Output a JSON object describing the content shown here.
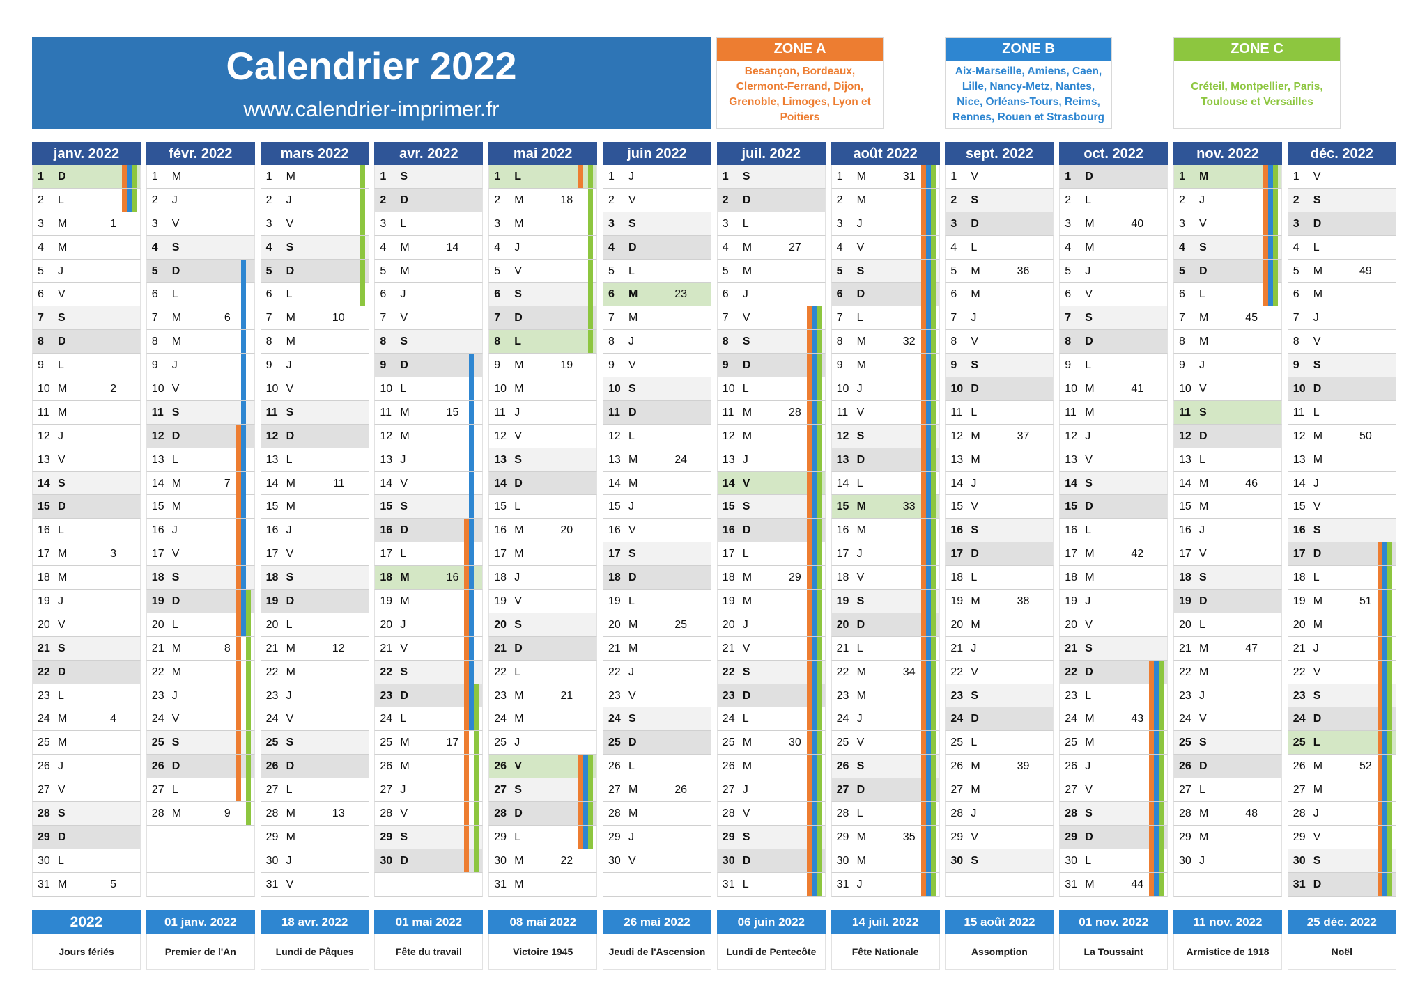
{
  "header": {
    "title": "Calendrier 2022",
    "url": "www.calendrier-imprimer.fr"
  },
  "zones": [
    {
      "label": "ZONE A",
      "cities": "Besançon, Bordeaux, Clermont-Ferrand, Dijon, Grenoble, Limoges, Lyon et Poitiers",
      "color": "#ed7d31"
    },
    {
      "label": "ZONE B",
      "cities": "Aix-Marseille, Amiens, Caen, Lille, Nancy-Metz, Nantes, Nice, Orléans-Tours, Reims, Rennes, Rouen et Strasbourg",
      "color": "#2e86d1"
    },
    {
      "label": "ZONE C",
      "cities": "Créteil, Montpellier, Paris, Toulouse et Versailles",
      "color": "#8dc63f"
    }
  ],
  "months": [
    {
      "label": "janv. 2022",
      "days": 31,
      "start": 6,
      "weeks": {
        "3": "1",
        "10": "2",
        "17": "3",
        "24": "4",
        "31": "5"
      },
      "holidays": [
        1
      ],
      "vacA": [
        1,
        2
      ],
      "vacB": [
        1,
        2
      ],
      "vacC": [
        1,
        2
      ]
    },
    {
      "label": "févr. 2022",
      "days": 28,
      "start": 2,
      "weeks": {
        "7": "6",
        "14": "7",
        "21": "8",
        "28": "9"
      },
      "holidays": [],
      "vacA": [
        12,
        13,
        14,
        15,
        16,
        17,
        18,
        19,
        20,
        21,
        22,
        23,
        24,
        25,
        26,
        27
      ],
      "vacB": [
        5,
        6,
        7,
        8,
        9,
        10,
        11,
        12,
        13,
        14,
        15,
        16,
        17,
        18,
        19,
        20
      ],
      "vacC": [
        19,
        20,
        21,
        22,
        23,
        24,
        25,
        26,
        27,
        28
      ]
    },
    {
      "label": "mars 2022",
      "days": 31,
      "start": 2,
      "weeks": {
        "7": "10",
        "14": "11",
        "21": "12",
        "28": "13"
      },
      "holidays": [],
      "vacA": [],
      "vacB": [],
      "vacC": [
        1,
        2,
        3,
        4,
        5,
        6
      ]
    },
    {
      "label": "avr. 2022",
      "days": 30,
      "start": 5,
      "weeks": {
        "4": "14",
        "11": "15",
        "18": "16",
        "25": "17"
      },
      "holidays": [
        18
      ],
      "vacA": [
        16,
        17,
        18,
        19,
        20,
        21,
        22,
        23,
        24,
        25,
        26,
        27,
        28,
        29,
        30
      ],
      "vacB": [
        9,
        10,
        11,
        12,
        13,
        14,
        15,
        16,
        17,
        18,
        19,
        20,
        21,
        22,
        23,
        24
      ],
      "vacC": [
        23,
        24,
        25,
        26,
        27,
        28,
        29,
        30
      ]
    },
    {
      "label": "mai 2022",
      "days": 31,
      "start": 0,
      "weeks": {
        "2": "18",
        "9": "19",
        "16": "20",
        "23": "21",
        "30": "22"
      },
      "holidays": [
        1,
        8,
        26
      ],
      "vacA": [
        1,
        26,
        27,
        28,
        29
      ],
      "vacB": [
        26,
        27,
        28,
        29
      ],
      "vacC": [
        1,
        2,
        3,
        4,
        5,
        6,
        7,
        8,
        26,
        27,
        28,
        29
      ]
    },
    {
      "label": "juin 2022",
      "days": 30,
      "start": 3,
      "weeks": {
        "6": "23",
        "13": "24",
        "20": "25",
        "27": "26"
      },
      "holidays": [
        6
      ],
      "vacA": [],
      "vacB": [],
      "vacC": []
    },
    {
      "label": "juil. 2022",
      "days": 31,
      "start": 5,
      "weeks": {
        "4": "27",
        "11": "28",
        "18": "29",
        "25": "30"
      },
      "holidays": [
        14
      ],
      "vacA": [
        7,
        8,
        9,
        10,
        11,
        12,
        13,
        14,
        15,
        16,
        17,
        18,
        19,
        20,
        21,
        22,
        23,
        24,
        25,
        26,
        27,
        28,
        29,
        30,
        31
      ],
      "vacB": [
        7,
        8,
        9,
        10,
        11,
        12,
        13,
        14,
        15,
        16,
        17,
        18,
        19,
        20,
        21,
        22,
        23,
        24,
        25,
        26,
        27,
        28,
        29,
        30,
        31
      ],
      "vacC": [
        7,
        8,
        9,
        10,
        11,
        12,
        13,
        14,
        15,
        16,
        17,
        18,
        19,
        20,
        21,
        22,
        23,
        24,
        25,
        26,
        27,
        28,
        29,
        30,
        31
      ]
    },
    {
      "label": "août 2022",
      "days": 31,
      "start": 1,
      "weeks": {
        "1": "31",
        "8": "32",
        "15": "33",
        "22": "34",
        "29": "35"
      },
      "holidays": [
        15
      ],
      "vacA": [
        1,
        2,
        3,
        4,
        5,
        6,
        7,
        8,
        9,
        10,
        11,
        12,
        13,
        14,
        15,
        16,
        17,
        18,
        19,
        20,
        21,
        22,
        23,
        24,
        25,
        26,
        27,
        28,
        29,
        30,
        31
      ],
      "vacB": [
        1,
        2,
        3,
        4,
        5,
        6,
        7,
        8,
        9,
        10,
        11,
        12,
        13,
        14,
        15,
        16,
        17,
        18,
        19,
        20,
        21,
        22,
        23,
        24,
        25,
        26,
        27,
        28,
        29,
        30,
        31
      ],
      "vacC": [
        1,
        2,
        3,
        4,
        5,
        6,
        7,
        8,
        9,
        10,
        11,
        12,
        13,
        14,
        15,
        16,
        17,
        18,
        19,
        20,
        21,
        22,
        23,
        24,
        25,
        26,
        27,
        28,
        29,
        30,
        31
      ]
    },
    {
      "label": "sept. 2022",
      "days": 30,
      "start": 4,
      "weeks": {
        "5": "36",
        "12": "37",
        "19": "38",
        "26": "39"
      },
      "holidays": [],
      "vacA": [],
      "vacB": [],
      "vacC": []
    },
    {
      "label": "oct. 2022",
      "days": 31,
      "start": 6,
      "weeks": {
        "3": "40",
        "10": "41",
        "17": "42",
        "24": "43",
        "31": "44"
      },
      "holidays": [],
      "vacA": [
        22,
        23,
        24,
        25,
        26,
        27,
        28,
        29,
        30,
        31
      ],
      "vacB": [
        22,
        23,
        24,
        25,
        26,
        27,
        28,
        29,
        30,
        31
      ],
      "vacC": [
        22,
        23,
        24,
        25,
        26,
        27,
        28,
        29,
        30,
        31
      ]
    },
    {
      "label": "nov. 2022",
      "days": 30,
      "start": 2,
      "weeks": {
        "7": "45",
        "14": "46",
        "21": "47",
        "28": "48"
      },
      "holidays": [
        1,
        11
      ],
      "vacA": [
        1,
        2,
        3,
        4,
        5,
        6
      ],
      "vacB": [
        1,
        2,
        3,
        4,
        5,
        6
      ],
      "vacC": [
        1,
        2,
        3,
        4,
        5,
        6
      ]
    },
    {
      "label": "déc. 2022",
      "days": 31,
      "start": 4,
      "weeks": {
        "5": "49",
        "12": "50",
        "19": "51",
        "26": "52"
      },
      "holidays": [
        25
      ],
      "vacA": [
        17,
        18,
        19,
        20,
        21,
        22,
        23,
        24,
        25,
        26,
        27,
        28,
        29,
        30,
        31
      ],
      "vacB": [
        17,
        18,
        19,
        20,
        21,
        22,
        23,
        24,
        25,
        26,
        27,
        28,
        29,
        30,
        31
      ],
      "vacC": [
        17,
        18,
        19,
        20,
        21,
        22,
        23,
        24,
        25,
        26,
        27,
        28,
        29,
        30,
        31
      ]
    }
  ],
  "weekdays": [
    "L",
    "M",
    "M",
    "J",
    "V",
    "S",
    "D"
  ],
  "footer": {
    "year": "2022",
    "year_label": "Jours fériés",
    "holidays": [
      {
        "date": "01 janv. 2022",
        "name": "Premier de l'An"
      },
      {
        "date": "18 avr. 2022",
        "name": "Lundi de Pâques"
      },
      {
        "date": "01 mai 2022",
        "name": "Fête du travail"
      },
      {
        "date": "08 mai 2022",
        "name": "Victoire 1945"
      },
      {
        "date": "26 mai 2022",
        "name": "Jeudi de l'Ascension"
      },
      {
        "date": "06 juin 2022",
        "name": "Lundi de Pentecôte"
      },
      {
        "date": "14 juil. 2022",
        "name": "Fête Nationale"
      },
      {
        "date": "15 août 2022",
        "name": "Assomption"
      },
      {
        "date": "01 nov. 2022",
        "name": "La Toussaint"
      },
      {
        "date": "11 nov. 2022",
        "name": "Armistice de 1918"
      },
      {
        "date": "25 déc. 2022",
        "name": "Noël"
      }
    ]
  },
  "colors": {
    "header_blue": "#2e75b6",
    "month_header": "#2f5597",
    "holiday_green": "#d4e7c5",
    "footer_blue": "#2e86d1"
  }
}
